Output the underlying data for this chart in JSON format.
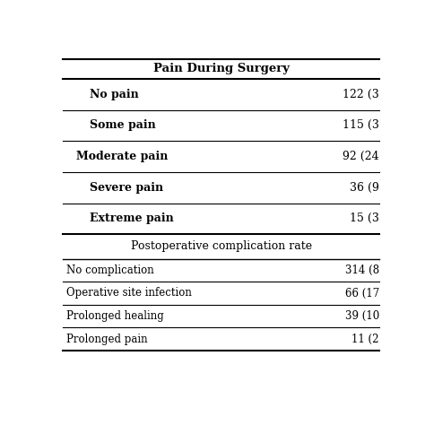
{
  "title": "Pain During Surgery",
  "pain_rows": [
    {
      "label": "No pain",
      "value": "122 (3",
      "bold": true,
      "indent": 1
    },
    {
      "label": "Some pain",
      "value": "115 (3",
      "bold": true,
      "indent": 1
    },
    {
      "label": "Moderate pain",
      "value": "92 (24",
      "bold": true,
      "indent": 0
    },
    {
      "label": "Severe pain",
      "value": "36 (9",
      "bold": true,
      "indent": 1
    },
    {
      "label": "Extreme pain",
      "value": "15 (3",
      "bold": true,
      "indent": 1
    }
  ],
  "section2_header": "Postoperative complication rate",
  "comp_rows": [
    {
      "label": "No complication",
      "value": "314 (8"
    },
    {
      "label": "Operative site infection",
      "value": "66 (17"
    },
    {
      "label": "Prolonged healing",
      "value": "39 (10"
    },
    {
      "label": "Prolonged pain",
      "value": "11 (2"
    }
  ],
  "background": "#ffffff",
  "text_color": "#000000",
  "line_color": "#000000"
}
